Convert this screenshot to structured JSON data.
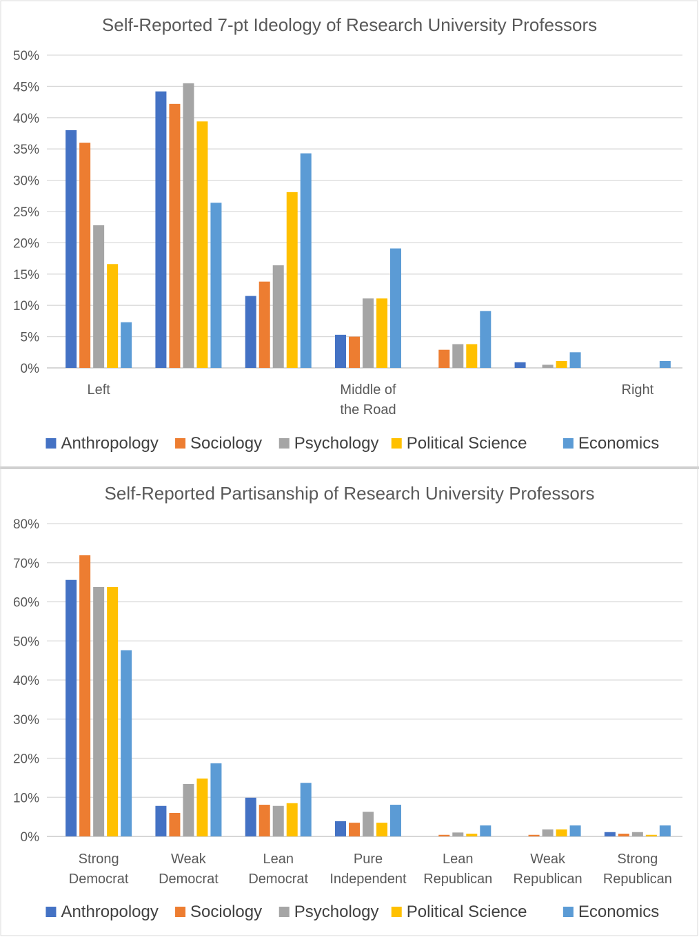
{
  "colors": {
    "Anthropology": "#4472C4",
    "Sociology": "#ED7D31",
    "Psychology": "#A5A5A5",
    "Political Science": "#FFC000",
    "Economics": "#5B9BD5"
  },
  "chart_data": [
    {
      "type": "bar",
      "title": "Self-Reported 7-pt Ideology of Research University Professors",
      "xlabel": "",
      "ylabel": "",
      "ylim": [
        0,
        50
      ],
      "yticks": [
        "0%",
        "5%",
        "10%",
        "15%",
        "20%",
        "25%",
        "30%",
        "35%",
        "40%",
        "45%",
        "50%"
      ],
      "ytick_step": 5,
      "categories": [
        [
          "Left"
        ],
        [
          ""
        ],
        [
          ""
        ],
        [
          "Middle of",
          "the Road"
        ],
        [
          ""
        ],
        [
          ""
        ],
        [
          "Right"
        ]
      ],
      "legend": "bottom",
      "grid": true,
      "series": [
        {
          "name": "Anthropology",
          "values": [
            38.0,
            44.2,
            11.5,
            5.3,
            0,
            0.9,
            0
          ]
        },
        {
          "name": "Sociology",
          "values": [
            36.0,
            42.2,
            13.8,
            5.0,
            2.9,
            0,
            0
          ]
        },
        {
          "name": "Psychology",
          "values": [
            22.8,
            45.5,
            16.4,
            11.1,
            3.8,
            0.5,
            0
          ]
        },
        {
          "name": "Political Science",
          "values": [
            16.6,
            39.4,
            28.1,
            11.1,
            3.8,
            1.1,
            0
          ]
        },
        {
          "name": "Economics",
          "values": [
            7.3,
            26.4,
            34.3,
            19.1,
            9.1,
            2.5,
            1.1
          ]
        }
      ]
    },
    {
      "type": "bar",
      "title": "Self-Reported Partisanship of Research University Professors",
      "xlabel": "",
      "ylabel": "",
      "ylim": [
        0,
        80
      ],
      "yticks": [
        "0%",
        "10%",
        "20%",
        "30%",
        "40%",
        "50%",
        "60%",
        "70%",
        "80%"
      ],
      "ytick_step": 10,
      "categories": [
        [
          "Strong",
          "Democrat"
        ],
        [
          "Weak",
          "Democrat"
        ],
        [
          "Lean",
          "Democrat"
        ],
        [
          "Pure",
          "Independent"
        ],
        [
          "Lean",
          "Republican"
        ],
        [
          "Weak",
          "Republican"
        ],
        [
          "Strong",
          "Republican"
        ]
      ],
      "legend": "bottom",
      "grid": true,
      "series": [
        {
          "name": "Anthropology",
          "values": [
            65.6,
            7.8,
            9.9,
            3.9,
            0,
            0,
            1.1
          ]
        },
        {
          "name": "Sociology",
          "values": [
            71.9,
            6.0,
            8.1,
            3.5,
            0.4,
            0.4,
            0.7
          ]
        },
        {
          "name": "Psychology",
          "values": [
            63.8,
            13.4,
            7.8,
            6.3,
            1.0,
            1.8,
            1.1
          ]
        },
        {
          "name": "Political Science",
          "values": [
            63.8,
            14.8,
            8.5,
            3.5,
            0.7,
            1.8,
            0.4
          ]
        },
        {
          "name": "Economics",
          "values": [
            47.6,
            18.7,
            13.7,
            8.1,
            2.8,
            2.8,
            2.8
          ]
        }
      ]
    }
  ]
}
